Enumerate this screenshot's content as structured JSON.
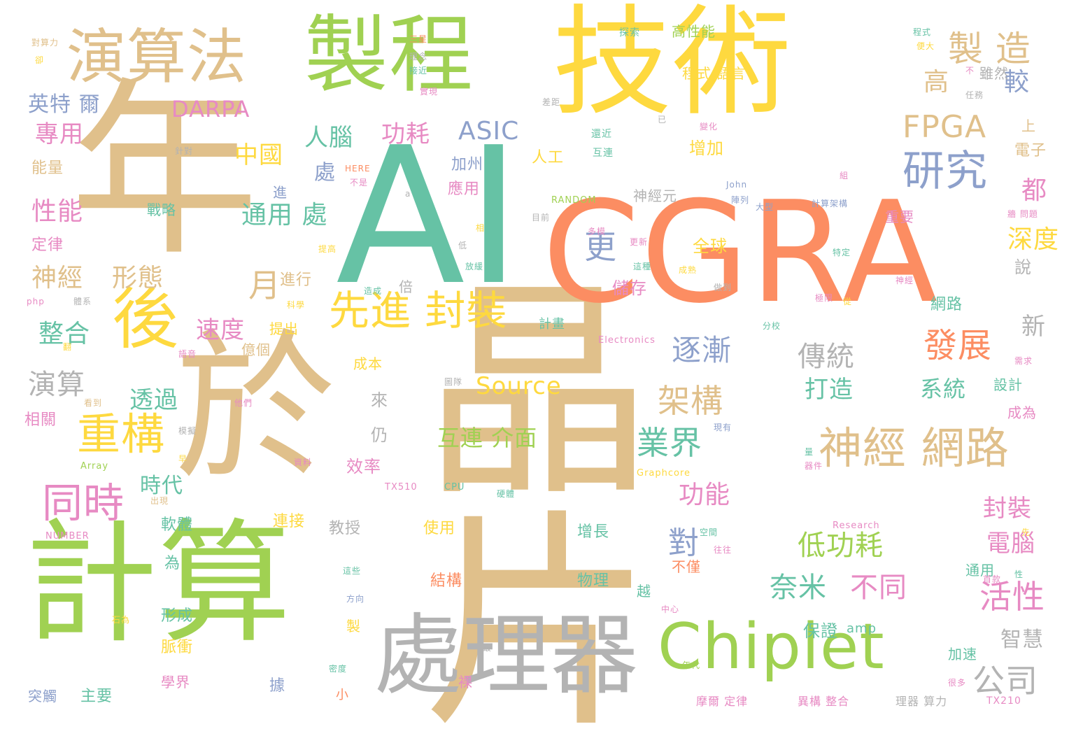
{
  "palette": {
    "tan": "#e0c08b",
    "green": "#a0d152",
    "yellow": "#fed93f",
    "orange": "#fc8d62",
    "teal": "#66c2a5",
    "blue": "#8da0cb",
    "pink": "#e78ac3",
    "gray": "#b3b3b3"
  },
  "words": [
    {
      "text": "晶片",
      "color": "tan",
      "size": 330,
      "dir": "v"
    },
    {
      "text": "技術",
      "color": "yellow",
      "size": 170,
      "dir": "h"
    },
    {
      "text": "AI",
      "color": "teal",
      "size": 270,
      "dir": "h"
    },
    {
      "text": "CGRA",
      "color": "orange",
      "size": 200,
      "dir": "h"
    },
    {
      "text": "年",
      "color": "tan",
      "size": 270,
      "dir": "h"
    },
    {
      "text": "於",
      "color": "tan",
      "size": 230,
      "dir": "h"
    },
    {
      "text": "計算",
      "color": "green",
      "size": 190,
      "dir": "h"
    },
    {
      "text": "製程",
      "color": "green",
      "size": 120,
      "dir": "h"
    },
    {
      "text": "演算法",
      "color": "tan",
      "size": 85,
      "dir": "h"
    },
    {
      "text": "處理器",
      "color": "gray",
      "size": 125,
      "dir": "h"
    },
    {
      "text": "Chiplet",
      "color": "green",
      "size": 90,
      "dir": "h"
    },
    {
      "text": "後",
      "color": "yellow",
      "size": 95,
      "dir": "h"
    },
    {
      "text": "神經 網路",
      "color": "tan",
      "size": 62,
      "dir": "h"
    },
    {
      "text": "研究",
      "color": "blue",
      "size": 60,
      "dir": "h"
    },
    {
      "text": "先進 封裝",
      "color": "yellow",
      "size": 58,
      "dir": "h"
    },
    {
      "text": "重構",
      "color": "yellow",
      "size": 62,
      "dir": "h"
    },
    {
      "text": "同時",
      "color": "pink",
      "size": 58,
      "dir": "h"
    },
    {
      "text": "製 造",
      "color": "tan",
      "size": 50,
      "dir": "h"
    },
    {
      "text": "FPGA",
      "color": "tan",
      "size": 44,
      "dir": "h"
    },
    {
      "text": "架構",
      "color": "tan",
      "size": 46,
      "dir": "h"
    },
    {
      "text": "業界",
      "color": "teal",
      "size": 46,
      "dir": "h"
    },
    {
      "text": "發展",
      "color": "orange",
      "size": 48,
      "dir": "h"
    },
    {
      "text": "低功耗",
      "color": "green",
      "size": 40,
      "dir": "h"
    },
    {
      "text": "公司",
      "color": "gray",
      "size": 46,
      "dir": "h"
    },
    {
      "text": "活性",
      "color": "pink",
      "size": 46,
      "dir": "h"
    },
    {
      "text": "逐漸",
      "color": "blue",
      "size": 42,
      "dir": "h"
    },
    {
      "text": "傳統",
      "color": "gray",
      "size": 40,
      "dir": "h"
    },
    {
      "text": "奈米",
      "color": "teal",
      "size": 40,
      "dir": "h"
    },
    {
      "text": "不同",
      "color": "pink",
      "size": 40,
      "dir": "h"
    },
    {
      "text": "更",
      "color": "blue",
      "size": 46,
      "dir": "h"
    },
    {
      "text": "月",
      "color": "tan",
      "size": 46,
      "dir": "h"
    },
    {
      "text": "通用 處",
      "color": "teal",
      "size": 36,
      "dir": "h"
    },
    {
      "text": "ASIC",
      "color": "blue",
      "size": 36,
      "dir": "h"
    },
    {
      "text": "DARPA",
      "color": "pink",
      "size": 32,
      "dir": "h"
    },
    {
      "text": "Source",
      "color": "yellow",
      "size": 34,
      "dir": "h"
    },
    {
      "text": "互連 介面",
      "color": "green",
      "size": 32,
      "dir": "h"
    },
    {
      "text": "人腦",
      "color": "teal",
      "size": 34,
      "dir": "h"
    },
    {
      "text": "功耗",
      "color": "pink",
      "size": 34,
      "dir": "h"
    },
    {
      "text": "中國",
      "color": "yellow",
      "size": 34,
      "dir": "h"
    },
    {
      "text": "英特 爾",
      "color": "blue",
      "size": 30,
      "dir": "h"
    },
    {
      "text": "專用",
      "color": "pink",
      "size": 34,
      "dir": "h"
    },
    {
      "text": "性能",
      "color": "pink",
      "size": 36,
      "dir": "h"
    },
    {
      "text": "神經",
      "color": "tan",
      "size": 36,
      "dir": "h"
    },
    {
      "text": "形態",
      "color": "tan",
      "size": 36,
      "dir": "h"
    },
    {
      "text": "整合",
      "color": "teal",
      "size": 36,
      "dir": "h"
    },
    {
      "text": "演算",
      "color": "gray",
      "size": 40,
      "dir": "h"
    },
    {
      "text": "速度",
      "color": "pink",
      "size": 34,
      "dir": "h"
    },
    {
      "text": "透過",
      "color": "teal",
      "size": 34,
      "dir": "h"
    },
    {
      "text": "時代",
      "color": "teal",
      "size": 30,
      "dir": "h"
    },
    {
      "text": "對",
      "color": "blue",
      "size": 44,
      "dir": "h"
    },
    {
      "text": "功能",
      "color": "pink",
      "size": 36,
      "dir": "h"
    },
    {
      "text": "電腦",
      "color": "pink",
      "size": 34,
      "dir": "h"
    },
    {
      "text": "封裝",
      "color": "pink",
      "size": 34,
      "dir": "h"
    },
    {
      "text": "系統",
      "color": "teal",
      "size": 32,
      "dir": "h"
    },
    {
      "text": "打造",
      "color": "teal",
      "size": 34,
      "dir": "h"
    },
    {
      "text": "新",
      "color": "gray",
      "size": 34,
      "dir": "h"
    },
    {
      "text": "智慧",
      "color": "gray",
      "size": 30,
      "dir": "h"
    },
    {
      "text": "深度",
      "color": "yellow",
      "size": 36,
      "dir": "h"
    },
    {
      "text": "高",
      "color": "tan",
      "size": 36,
      "dir": "h"
    },
    {
      "text": "較",
      "color": "blue",
      "size": 36,
      "dir": "h"
    },
    {
      "text": "都",
      "color": "pink",
      "size": 36,
      "dir": "h"
    },
    {
      "text": "處",
      "color": "blue",
      "size": 30,
      "dir": "h"
    }
  ],
  "small_words": [
    {
      "text": "高性能",
      "color": "green"
    },
    {
      "text": "雖然",
      "color": "gray"
    },
    {
      "text": "程式 語言",
      "color": "yellow"
    },
    {
      "text": "增加",
      "color": "yellow"
    },
    {
      "text": "神經元",
      "color": "gray"
    },
    {
      "text": "重要",
      "color": "pink"
    },
    {
      "text": "全球",
      "color": "yellow"
    },
    {
      "text": "儲存",
      "color": "pink"
    },
    {
      "text": "進行",
      "color": "tan"
    },
    {
      "text": "提出",
      "color": "yellow"
    },
    {
      "text": "計畫",
      "color": "teal"
    },
    {
      "text": "億個",
      "color": "tan"
    },
    {
      "text": "成本",
      "color": "yellow"
    },
    {
      "text": "效率",
      "color": "pink"
    },
    {
      "text": "來",
      "color": "gray"
    },
    {
      "text": "仍",
      "color": "gray"
    },
    {
      "text": "倍",
      "color": "gray"
    },
    {
      "text": "加州",
      "color": "blue"
    },
    {
      "text": "應用",
      "color": "pink"
    },
    {
      "text": "人工",
      "color": "yellow"
    },
    {
      "text": "進",
      "color": "blue"
    },
    {
      "text": "戰略",
      "color": "teal"
    },
    {
      "text": "能量",
      "color": "tan"
    },
    {
      "text": "定律",
      "color": "pink"
    },
    {
      "text": "相關",
      "color": "pink"
    },
    {
      "text": "軟體",
      "color": "teal"
    },
    {
      "text": "形成",
      "color": "teal"
    },
    {
      "text": "脈衝",
      "color": "yellow"
    },
    {
      "text": "學界",
      "color": "pink"
    },
    {
      "text": "主要",
      "color": "teal"
    },
    {
      "text": "突觸",
      "color": "blue"
    },
    {
      "text": "據",
      "color": "blue"
    },
    {
      "text": "為",
      "color": "teal"
    },
    {
      "text": "連接",
      "color": "yellow"
    },
    {
      "text": "教授",
      "color": "gray"
    },
    {
      "text": "使用",
      "color": "yellow"
    },
    {
      "text": "結構",
      "color": "orange"
    },
    {
      "text": "增長",
      "color": "teal"
    },
    {
      "text": "物理",
      "color": "teal"
    },
    {
      "text": "網路",
      "color": "teal"
    },
    {
      "text": "通用",
      "color": "teal"
    },
    {
      "text": "設計",
      "color": "teal"
    },
    {
      "text": "加速",
      "color": "teal"
    },
    {
      "text": "保證",
      "color": "teal"
    },
    {
      "text": "amp",
      "color": "teal"
    },
    {
      "text": "成為",
      "color": "pink"
    },
    {
      "text": "越",
      "color": "teal"
    },
    {
      "text": "製",
      "color": "yellow"
    },
    {
      "text": "小",
      "color": "orange"
    },
    {
      "text": "裸",
      "color": "pink"
    },
    {
      "text": "不僅",
      "color": "orange"
    },
    {
      "text": "說",
      "color": "gray"
    },
    {
      "text": "電子",
      "color": "tan"
    },
    {
      "text": "上",
      "color": "tan"
    },
    {
      "text": "摩爾 定律",
      "color": "pink"
    },
    {
      "text": "異構 整合",
      "color": "pink"
    },
    {
      "text": "理器 算力",
      "color": "gray"
    },
    {
      "text": "TX210",
      "color": "pink"
    },
    {
      "text": "TX510",
      "color": "pink"
    },
    {
      "text": "CPU",
      "color": "teal"
    },
    {
      "text": "NUMBER",
      "color": "pink"
    },
    {
      "text": "Array",
      "color": "green"
    },
    {
      "text": "Graphcore",
      "color": "yellow"
    },
    {
      "text": "Research",
      "color": "pink"
    },
    {
      "text": "Electronics",
      "color": "pink"
    },
    {
      "text": "RANDOM",
      "color": "green"
    },
    {
      "text": "HERE",
      "color": "orange"
    },
    {
      "text": "John",
      "color": "blue"
    },
    {
      "text": "php",
      "color": "pink"
    },
    {
      "text": "探索",
      "color": "teal"
    },
    {
      "text": "三星",
      "color": "orange"
    },
    {
      "text": "理念",
      "color": "gray"
    },
    {
      "text": "接近",
      "color": "teal"
    },
    {
      "text": "實現",
      "color": "pink"
    },
    {
      "text": "差距",
      "color": "gray"
    },
    {
      "text": "程式",
      "color": "teal"
    },
    {
      "text": "便大",
      "color": "yellow"
    },
    {
      "text": "不",
      "color": "pink"
    },
    {
      "text": "任務",
      "color": "gray"
    },
    {
      "text": "已",
      "color": "gray"
    },
    {
      "text": "變化",
      "color": "pink"
    },
    {
      "text": "還近",
      "color": "teal"
    },
    {
      "text": "互連",
      "color": "teal"
    },
    {
      "text": "不是",
      "color": "pink"
    },
    {
      "text": "針對",
      "color": "gray"
    },
    {
      "text": "組",
      "color": "pink"
    },
    {
      "text": "陣列",
      "color": "blue"
    },
    {
      "text": "大型",
      "color": "blue"
    },
    {
      "text": "計算架構",
      "color": "blue"
    },
    {
      "text": "牆 問題",
      "color": "pink"
    },
    {
      "text": "目前",
      "color": "gray"
    },
    {
      "text": "多模",
      "color": "pink"
    },
    {
      "text": "更新",
      "color": "pink"
    },
    {
      "text": "特定",
      "color": "teal"
    },
    {
      "text": "提高",
      "color": "yellow"
    },
    {
      "text": "低",
      "color": "gray"
    },
    {
      "text": "放緩",
      "color": "teal"
    },
    {
      "text": "這種",
      "color": "teal"
    },
    {
      "text": "成熟",
      "color": "yellow"
    },
    {
      "text": "做到",
      "color": "gray"
    },
    {
      "text": "極限",
      "color": "pink"
    },
    {
      "text": "從",
      "color": "yellow"
    },
    {
      "text": "造成",
      "color": "teal"
    },
    {
      "text": "體系",
      "color": "gray"
    },
    {
      "text": "科學",
      "color": "yellow"
    },
    {
      "text": "分校",
      "color": "teal"
    },
    {
      "text": "圖隊",
      "color": "gray"
    },
    {
      "text": "語音",
      "color": "pink"
    },
    {
      "text": "看到",
      "color": "tan"
    },
    {
      "text": "他們",
      "color": "pink"
    },
    {
      "text": "模擬",
      "color": "gray"
    },
    {
      "text": "資料",
      "color": "pink"
    },
    {
      "text": "現有",
      "color": "blue"
    },
    {
      "text": "需求",
      "color": "pink"
    },
    {
      "text": "器件",
      "color": "pink"
    },
    {
      "text": "量",
      "color": "teal"
    },
    {
      "text": "早",
      "color": "yellow"
    },
    {
      "text": "出現",
      "color": "tan"
    },
    {
      "text": "硬體",
      "color": "teal"
    },
    {
      "text": "空間",
      "color": "teal"
    },
    {
      "text": "往往",
      "color": "pink"
    },
    {
      "text": "先",
      "color": "yellow"
    },
    {
      "text": "性",
      "color": "teal"
    },
    {
      "text": "首款",
      "color": "pink"
    },
    {
      "text": "這些",
      "color": "teal"
    },
    {
      "text": "中心",
      "color": "pink"
    },
    {
      "text": "方向",
      "color": "blue"
    },
    {
      "text": "石為",
      "color": "yellow"
    },
    {
      "text": "最",
      "color": "gray"
    },
    {
      "text": "年代",
      "color": "green"
    },
    {
      "text": "很多",
      "color": "pink"
    },
    {
      "text": "密度",
      "color": "teal"
    },
    {
      "text": "對算力",
      "color": "tan"
    },
    {
      "text": "卻",
      "color": "yellow"
    },
    {
      "text": "相",
      "color": "yellow"
    },
    {
      "text": "翻",
      "color": "yellow"
    },
    {
      "text": "神經",
      "color": "pink"
    },
    {
      "text": "a",
      "color": "gray"
    }
  ]
}
